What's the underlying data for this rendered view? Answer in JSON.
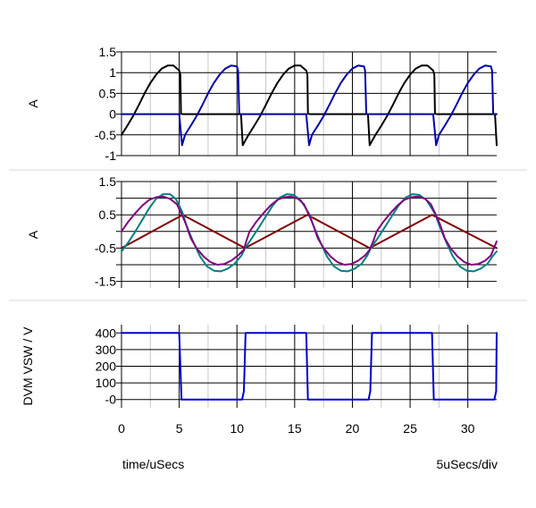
{
  "footer": {
    "left_label": "time/uSecs",
    "right_label": "5uSecs/div"
  },
  "colors": {
    "grid": "#000000",
    "minor_grid": "#c8c8c8",
    "separator": "#d8d8d8"
  },
  "chart_data": [
    {
      "type": "line",
      "ylabel": "A",
      "xlim": [
        0,
        32.5
      ],
      "ylim": [
        -1,
        1.5
      ],
      "yticks": [
        -1,
        -0.5,
        0,
        0.5,
        1,
        1.5
      ],
      "yticklabels": [
        "-1",
        "-0.5",
        "0",
        "0.5",
        "1",
        "1.5"
      ],
      "xticks": [
        0,
        5,
        10,
        15,
        20,
        25,
        30
      ],
      "minor_x": true,
      "show_x_ticklabels": false,
      "series": [
        {
          "color": "#000000",
          "values": [
            [
              0,
              -0.5
            ],
            [
              0.5,
              -0.28
            ],
            [
              1,
              -0.05
            ],
            [
              1.5,
              0.22
            ],
            [
              2,
              0.5
            ],
            [
              2.5,
              0.75
            ],
            [
              3,
              0.95
            ],
            [
              3.5,
              1.1
            ],
            [
              4,
              1.17
            ],
            [
              4.5,
              1.17
            ],
            [
              5,
              1.05
            ],
            [
              5.1,
              0.95
            ],
            [
              5.15,
              0.02
            ],
            [
              5.3,
              0.0
            ],
            [
              10.15,
              0.0
            ],
            [
              10.35,
              0.0
            ],
            [
              10.5,
              -0.75
            ],
            [
              11,
              -0.5
            ],
            [
              11.5,
              -0.28
            ],
            [
              12,
              -0.05
            ],
            [
              12.5,
              0.22
            ],
            [
              13,
              0.5
            ],
            [
              13.5,
              0.75
            ],
            [
              14,
              0.95
            ],
            [
              14.5,
              1.1
            ],
            [
              15,
              1.17
            ],
            [
              15.5,
              1.17
            ],
            [
              16,
              1.05
            ],
            [
              16.1,
              0.95
            ],
            [
              16.15,
              0.02
            ],
            [
              16.3,
              0.0
            ],
            [
              21.15,
              0.0
            ],
            [
              21.35,
              0.0
            ],
            [
              21.5,
              -0.75
            ],
            [
              22,
              -0.5
            ],
            [
              22.5,
              -0.28
            ],
            [
              23,
              -0.05
            ],
            [
              23.5,
              0.22
            ],
            [
              24,
              0.5
            ],
            [
              24.5,
              0.75
            ],
            [
              25,
              0.95
            ],
            [
              25.5,
              1.1
            ],
            [
              26,
              1.17
            ],
            [
              26.5,
              1.17
            ],
            [
              27,
              1.05
            ],
            [
              27.1,
              0.95
            ],
            [
              27.15,
              0.02
            ],
            [
              27.3,
              0.0
            ],
            [
              32.15,
              0.0
            ],
            [
              32.35,
              0.0
            ],
            [
              32.5,
              -0.75
            ]
          ]
        },
        {
          "color": "#0000aa",
          "values": [
            [
              0,
              0.0
            ],
            [
              4.9,
              0.0
            ],
            [
              5.0,
              0.0
            ],
            [
              5.25,
              -0.75
            ],
            [
              5.5,
              -0.5
            ],
            [
              6,
              -0.28
            ],
            [
              6.5,
              -0.05
            ],
            [
              7,
              0.22
            ],
            [
              7.5,
              0.5
            ],
            [
              8,
              0.75
            ],
            [
              8.5,
              0.95
            ],
            [
              9,
              1.1
            ],
            [
              9.5,
              1.17
            ],
            [
              10,
              1.15
            ],
            [
              10.1,
              1.05
            ],
            [
              10.2,
              0.02
            ],
            [
              10.35,
              0.0
            ],
            [
              15.9,
              0.0
            ],
            [
              16.0,
              0.0
            ],
            [
              16.25,
              -0.75
            ],
            [
              16.5,
              -0.5
            ],
            [
              17,
              -0.28
            ],
            [
              17.5,
              -0.05
            ],
            [
              18,
              0.22
            ],
            [
              18.5,
              0.5
            ],
            [
              19,
              0.75
            ],
            [
              19.5,
              0.95
            ],
            [
              20,
              1.1
            ],
            [
              20.5,
              1.17
            ],
            [
              21,
              1.15
            ],
            [
              21.1,
              1.05
            ],
            [
              21.2,
              0.02
            ],
            [
              21.35,
              0.0
            ],
            [
              26.9,
              0.0
            ],
            [
              27.0,
              0.0
            ],
            [
              27.25,
              -0.75
            ],
            [
              27.5,
              -0.5
            ],
            [
              28,
              -0.28
            ],
            [
              28.5,
              -0.05
            ],
            [
              29,
              0.22
            ],
            [
              29.5,
              0.5
            ],
            [
              30,
              0.75
            ],
            [
              30.5,
              0.95
            ],
            [
              31,
              1.1
            ],
            [
              31.5,
              1.17
            ],
            [
              32,
              1.15
            ],
            [
              32.1,
              1.05
            ],
            [
              32.2,
              0.02
            ],
            [
              32.35,
              0.0
            ],
            [
              32.5,
              0.0
            ]
          ]
        }
      ]
    },
    {
      "type": "line",
      "ylabel": "A",
      "xlim": [
        0,
        32.5
      ],
      "ylim": [
        -1.7,
        1.5
      ],
      "yticks": [
        -1.5,
        -0.5,
        0.5,
        1.5
      ],
      "yticklabels": [
        "-1.5",
        "-0.5",
        "0.5",
        "1.5"
      ],
      "extra_hlines": [
        -1,
        0,
        1
      ],
      "xticks": [
        0,
        5,
        10,
        15,
        20,
        25,
        30
      ],
      "minor_x": true,
      "show_x_ticklabels": false,
      "series": [
        {
          "color": "#800000",
          "values": [
            [
              0,
              -0.5
            ],
            [
              5.3,
              0.5
            ],
            [
              10.7,
              -0.5
            ],
            [
              16.1,
              0.5
            ],
            [
              21.5,
              -0.5
            ],
            [
              26.9,
              0.5
            ],
            [
              32.5,
              -0.5
            ]
          ]
        },
        {
          "color": "#008080",
          "values": [
            [
              0,
              -0.6
            ],
            [
              0.6,
              -0.32
            ],
            [
              1.2,
              0.0
            ],
            [
              1.8,
              0.35
            ],
            [
              2.4,
              0.7
            ],
            [
              3.0,
              0.98
            ],
            [
              3.6,
              1.12
            ],
            [
              4.2,
              1.12
            ],
            [
              4.7,
              0.98
            ],
            [
              5.0,
              0.78
            ],
            [
              5.3,
              0.55
            ],
            [
              5.6,
              0.2
            ],
            [
              6.2,
              -0.3
            ],
            [
              6.8,
              -0.75
            ],
            [
              7.4,
              -1.05
            ],
            [
              8.0,
              -1.18
            ],
            [
              8.6,
              -1.2
            ],
            [
              9.2,
              -1.12
            ],
            [
              9.8,
              -0.97
            ],
            [
              10.4,
              -0.72
            ],
            [
              10.7,
              -0.5
            ],
            [
              11.3,
              -0.2
            ],
            [
              11.9,
              0.12
            ],
            [
              12.5,
              0.45
            ],
            [
              13.1,
              0.78
            ],
            [
              13.7,
              1.02
            ],
            [
              14.3,
              1.12
            ],
            [
              14.9,
              1.1
            ],
            [
              15.5,
              0.95
            ],
            [
              16.0,
              0.68
            ],
            [
              16.3,
              0.5
            ],
            [
              16.6,
              0.2
            ],
            [
              17.2,
              -0.3
            ],
            [
              17.8,
              -0.75
            ],
            [
              18.4,
              -1.05
            ],
            [
              19.0,
              -1.18
            ],
            [
              19.6,
              -1.2
            ],
            [
              20.2,
              -1.12
            ],
            [
              20.8,
              -0.97
            ],
            [
              21.3,
              -0.72
            ],
            [
              21.6,
              -0.5
            ],
            [
              22.2,
              -0.2
            ],
            [
              22.8,
              0.12
            ],
            [
              23.4,
              0.45
            ],
            [
              24.0,
              0.78
            ],
            [
              24.6,
              1.02
            ],
            [
              25.2,
              1.12
            ],
            [
              25.8,
              1.1
            ],
            [
              26.4,
              0.95
            ],
            [
              26.9,
              0.68
            ],
            [
              27.2,
              0.5
            ],
            [
              27.5,
              0.2
            ],
            [
              28.1,
              -0.3
            ],
            [
              28.7,
              -0.75
            ],
            [
              29.3,
              -1.05
            ],
            [
              29.9,
              -1.18
            ],
            [
              30.5,
              -1.2
            ],
            [
              31.1,
              -1.12
            ],
            [
              31.7,
              -0.97
            ],
            [
              32.2,
              -0.72
            ],
            [
              32.5,
              -0.6
            ]
          ]
        },
        {
          "color": "#800080",
          "values": [
            [
              0,
              0.0
            ],
            [
              0.6,
              0.3
            ],
            [
              1.2,
              0.55
            ],
            [
              1.8,
              0.78
            ],
            [
              2.4,
              0.95
            ],
            [
              3.0,
              1.03
            ],
            [
              3.6,
              1.05
            ],
            [
              4.2,
              0.98
            ],
            [
              4.8,
              0.82
            ],
            [
              5.3,
              0.45
            ],
            [
              5.6,
              0.2
            ],
            [
              6.0,
              -0.2
            ],
            [
              6.5,
              -0.5
            ],
            [
              7.1,
              -0.75
            ],
            [
              7.7,
              -0.92
            ],
            [
              8.3,
              -1.0
            ],
            [
              8.9,
              -0.98
            ],
            [
              9.5,
              -0.88
            ],
            [
              10.1,
              -0.72
            ],
            [
              10.6,
              -0.55
            ],
            [
              10.8,
              -0.3
            ],
            [
              11.1,
              0.0
            ],
            [
              11.7,
              0.3
            ],
            [
              12.3,
              0.55
            ],
            [
              12.9,
              0.78
            ],
            [
              13.5,
              0.95
            ],
            [
              14.1,
              1.03
            ],
            [
              14.7,
              1.05
            ],
            [
              15.3,
              0.98
            ],
            [
              15.8,
              0.82
            ],
            [
              16.3,
              0.45
            ],
            [
              16.6,
              0.2
            ],
            [
              17.0,
              -0.2
            ],
            [
              17.5,
              -0.5
            ],
            [
              18.1,
              -0.75
            ],
            [
              18.7,
              -0.92
            ],
            [
              19.3,
              -1.0
            ],
            [
              19.9,
              -0.98
            ],
            [
              20.5,
              -0.88
            ],
            [
              21.1,
              -0.72
            ],
            [
              21.5,
              -0.55
            ],
            [
              21.8,
              -0.3
            ],
            [
              22.1,
              0.0
            ],
            [
              22.7,
              0.3
            ],
            [
              23.3,
              0.55
            ],
            [
              23.9,
              0.78
            ],
            [
              24.5,
              0.95
            ],
            [
              25.1,
              1.03
            ],
            [
              25.7,
              1.05
            ],
            [
              26.3,
              0.98
            ],
            [
              26.8,
              0.82
            ],
            [
              27.3,
              0.45
            ],
            [
              27.6,
              0.2
            ],
            [
              28.0,
              -0.2
            ],
            [
              28.5,
              -0.5
            ],
            [
              29.1,
              -0.75
            ],
            [
              29.7,
              -0.92
            ],
            [
              30.3,
              -1.0
            ],
            [
              30.9,
              -0.98
            ],
            [
              31.5,
              -0.88
            ],
            [
              32.0,
              -0.72
            ],
            [
              32.5,
              -0.3
            ]
          ]
        }
      ]
    },
    {
      "type": "line",
      "ylabel": "DVM VSW / V",
      "xlim": [
        0,
        32.5
      ],
      "ylim": [
        -50,
        450
      ],
      "yticks": [
        0,
        100,
        200,
        300,
        400
      ],
      "yticklabels": [
        "-0",
        "100",
        "200",
        "300",
        "400"
      ],
      "xticks": [
        0,
        5,
        10,
        15,
        20,
        25,
        30
      ],
      "xticklabels": [
        "0",
        "5",
        "10",
        "15",
        "20",
        "25",
        "30"
      ],
      "minor_x": true,
      "show_x_ticklabels": true,
      "series": [
        {
          "color": "#0000cc",
          "values": [
            [
              0,
              400
            ],
            [
              5.0,
              400
            ],
            [
              5.2,
              0
            ],
            [
              10.45,
              0
            ],
            [
              10.6,
              50
            ],
            [
              10.75,
              400
            ],
            [
              16.0,
              400
            ],
            [
              16.15,
              0
            ],
            [
              21.4,
              0
            ],
            [
              21.55,
              50
            ],
            [
              21.7,
              400
            ],
            [
              26.9,
              400
            ],
            [
              27.05,
              0
            ],
            [
              32.3,
              0
            ],
            [
              32.45,
              50
            ],
            [
              32.5,
              400
            ]
          ]
        }
      ]
    }
  ]
}
